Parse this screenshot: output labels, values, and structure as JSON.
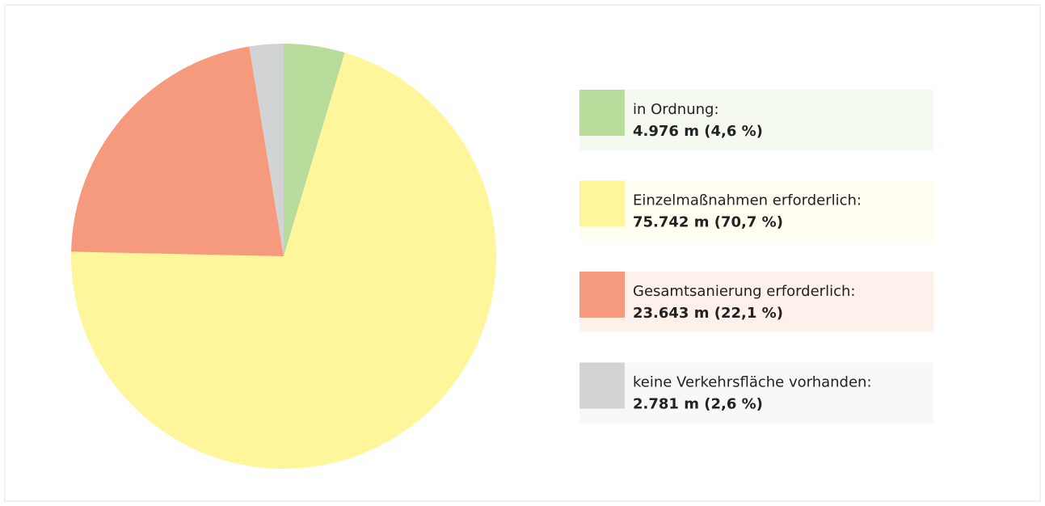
{
  "chart_data": {
    "type": "pie",
    "categories": [
      "in Ordnung:",
      "Einzelmaßnahmen erforderlich:",
      "Gesamtsanierung erforderlich:",
      "keine Verkehrsfläche vorhanden:"
    ],
    "values": [
      4976,
      75742,
      23643,
      2781
    ],
    "value_labels": [
      "4.976 m (4,6 %)",
      "75.742 m (70,7 %)",
      "23.643 m (22,1 %)",
      "2.781 m (2,6 %)"
    ],
    "colors": [
      "#b8dc9c",
      "#fff59a",
      "#f59a7c",
      "#d1d3d5"
    ]
  }
}
